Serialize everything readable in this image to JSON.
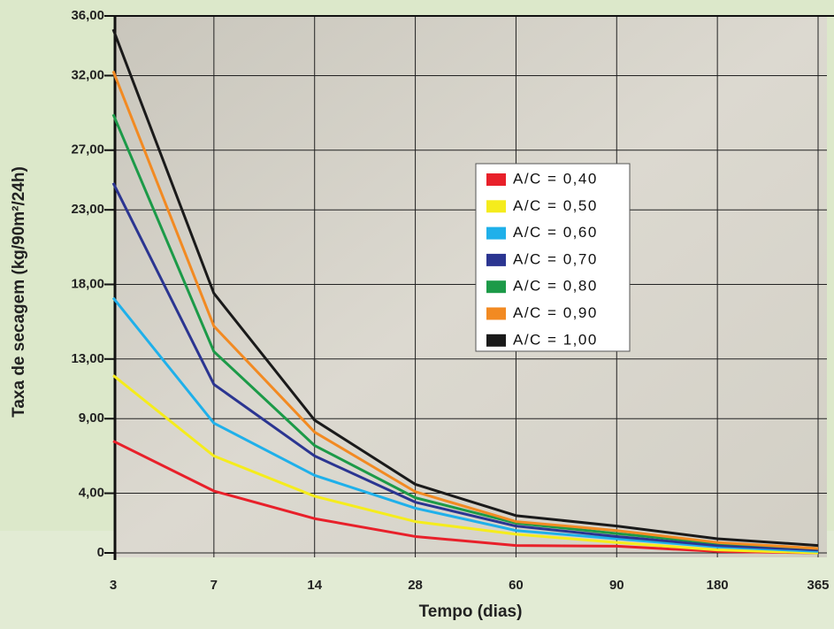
{
  "chart_data": {
    "type": "line",
    "x_label": "Tempo (dias)",
    "y_label": "Taxa de secagem (kg/90m²/24h)",
    "categories": [
      "3",
      "7",
      "14",
      "28",
      "60",
      "90",
      "180",
      "365"
    ],
    "ylim": [
      0,
      36
    ],
    "yticks": [
      0,
      {
        "value": 4,
        "label": "4,00"
      },
      {
        "value": 9,
        "label": "9,00"
      },
      {
        "value": 13,
        "label": "13,00"
      },
      {
        "value": 18,
        "label": "18,00"
      },
      {
        "value": 23,
        "label": "23,00"
      },
      {
        "value": 27,
        "label": "27,00"
      },
      {
        "value": 32,
        "label": "32,00"
      },
      {
        "value": 36,
        "label": "36,00"
      }
    ],
    "grid": true,
    "series": [
      {
        "name": "A/C = 0,40",
        "color": "#e8202a",
        "values": [
          7.5,
          4.15,
          2.3,
          1.1,
          0.5,
          0.45,
          0.1,
          0
        ]
      },
      {
        "name": "A/C = 0,50",
        "color": "#f5ec1c",
        "values": [
          11.9,
          6.5,
          3.8,
          2.1,
          1.25,
          0.7,
          0.2,
          0
        ]
      },
      {
        "name": "A/C = 0,60",
        "color": "#1fb0ea",
        "values": [
          17.1,
          8.7,
          5.2,
          3.0,
          1.5,
          0.95,
          0.4,
          0.1
        ]
      },
      {
        "name": "A/C = 0,70",
        "color": "#2b3591",
        "values": [
          24.8,
          11.3,
          6.5,
          3.4,
          1.8,
          1.1,
          0.5,
          0.2
        ]
      },
      {
        "name": "A/C = 0,80",
        "color": "#1c9a48",
        "values": [
          29.4,
          13.5,
          7.2,
          3.7,
          2.0,
          1.3,
          0.65,
          0.3
        ]
      },
      {
        "name": "A/C = 0,90",
        "color": "#f28a22",
        "values": [
          32.3,
          15.2,
          8.1,
          4.1,
          2.1,
          1.5,
          0.7,
          0.3
        ]
      },
      {
        "name": "A/C = 1,00",
        "color": "#1a1a1a",
        "values": [
          35.1,
          17.4,
          8.9,
          4.6,
          2.5,
          1.8,
          0.95,
          0.5
        ]
      }
    ]
  }
}
